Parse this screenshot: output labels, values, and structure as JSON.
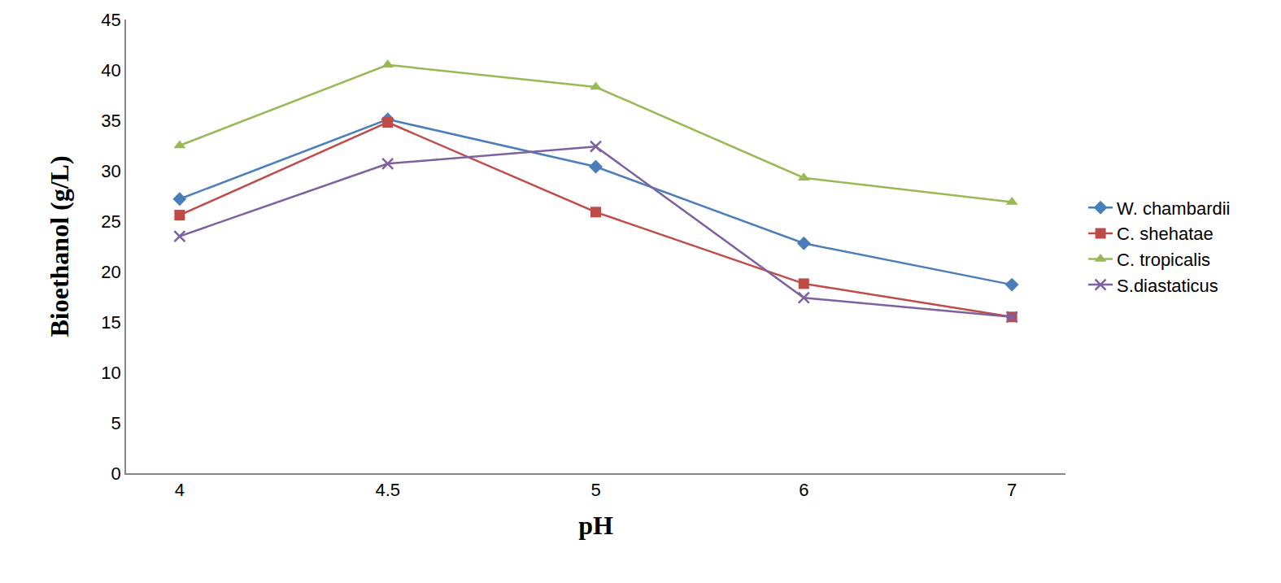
{
  "chart_data": {
    "type": "line",
    "x_label": "pH",
    "y_label": "Bioethanol (g/L)",
    "categories": [
      "4",
      "4.5",
      "5",
      "6",
      "7"
    ],
    "series": [
      {
        "name": "W. chambardii",
        "color": "#4a7ebb",
        "marker": "diamond",
        "values": [
          27.2,
          35.1,
          30.4,
          22.8,
          18.7
        ]
      },
      {
        "name": "C. shehatae",
        "color": "#be4b48",
        "marker": "square",
        "values": [
          25.6,
          34.8,
          25.9,
          18.8,
          15.5
        ]
      },
      {
        "name": "C. tropicalis",
        "color": "#98b954",
        "marker": "triangle",
        "values": [
          32.5,
          40.5,
          38.3,
          29.3,
          26.9
        ]
      },
      {
        "name": "S.diastaticus",
        "color": "#7d60a0",
        "marker": "x",
        "values": [
          23.5,
          30.7,
          32.4,
          17.4,
          15.5
        ]
      }
    ],
    "ylim": [
      0,
      45
    ],
    "yticks": [
      0,
      5,
      10,
      15,
      20,
      25,
      30,
      35,
      40,
      45
    ],
    "grid": false,
    "legend": "right"
  }
}
